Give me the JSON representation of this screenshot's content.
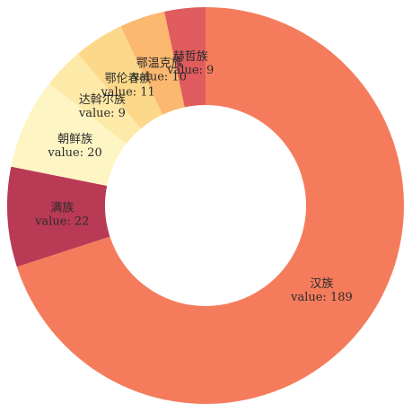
{
  "chart_data": {
    "type": "pie",
    "variant": "donut",
    "start": "top, clockwise",
    "title": "",
    "value_prefix": "value: ",
    "slices": [
      {
        "label": "汉族",
        "value": 189,
        "color": "#f47c5c"
      },
      {
        "label": "满族",
        "value": 22,
        "color": "#b93a55"
      },
      {
        "label": "朝鲜族",
        "value": 20,
        "color": "#fdf5c3"
      },
      {
        "label": "达斡尔族",
        "value": 9,
        "color": "#fde9a8"
      },
      {
        "label": "鄂伦春族",
        "value": 11,
        "color": "#fcd98a"
      },
      {
        "label": "鄂温克族",
        "value": 10,
        "color": "#fbb86f"
      },
      {
        "label": "赫哲族",
        "value": 9,
        "color": "#e05c5e"
      }
    ]
  }
}
